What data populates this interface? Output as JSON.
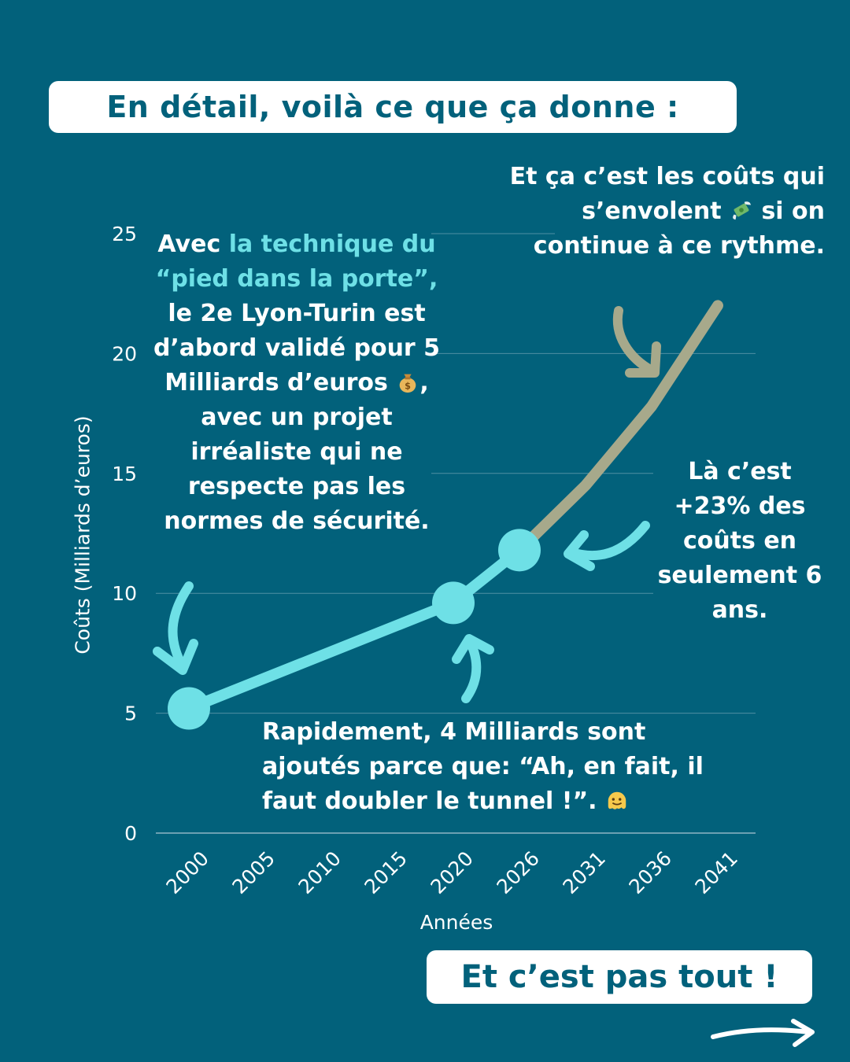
{
  "header": {
    "title": "En détail, voilà ce que ça donne :"
  },
  "chart_data": {
    "type": "line",
    "xlabel": "Années",
    "ylabel": "Coûts (Milliards d’euros)",
    "x_ticks": [
      "2000",
      "2005",
      "2010",
      "2015",
      "2020",
      "2026",
      "2031",
      "2036",
      "2041"
    ],
    "y_ticks": [
      "0",
      "5",
      "10",
      "15",
      "20",
      "25"
    ],
    "ylim": [
      0,
      25
    ],
    "grid": "horizontal",
    "series": [
      {
        "kind": "actual",
        "color": "#6ee0e6",
        "points": [
          {
            "x": 2000,
            "y": 5.2
          },
          {
            "x": 2020,
            "y": 9.6
          },
          {
            "x": 2026,
            "y": 11.8
          }
        ]
      },
      {
        "kind": "projection",
        "color": "#a7a98b",
        "points": [
          {
            "x": 2026,
            "y": 11.8
          },
          {
            "x": 2031,
            "y": 14.5
          },
          {
            "x": 2036,
            "y": 17.8
          },
          {
            "x": 2041,
            "y": 22.0
          }
        ]
      }
    ]
  },
  "annotations": {
    "left": {
      "part1": "Avec ",
      "highlight": "la technique du “pied dans la porte”,",
      "part2": " le 2e Lyon-Turin est d’abord validé pour 5 Milliards d’euros",
      "part3": ", avec un projet irréaliste qui ne respecte pas les normes de sécurité."
    },
    "top": "Et ça c’est les coûts qui s’envolent",
    "top_end": " si on continue à ce rythme.",
    "right": "Là c’est +23% des coûts en seulement 6 ans.",
    "bottom": "Rapidement, 4 Milliards sont ajoutés parce que: “Ah, en fait, il faut doubler le tunnel !”."
  },
  "icons": {
    "money_bag": "money-bag-icon",
    "money_wings": "money-with-wings-icon",
    "melting_face": "melting-face-icon",
    "next": "right-arrow-icon"
  },
  "colors": {
    "background": "#02617b",
    "actual_line": "#6ee0e6",
    "projection_line": "#a7a98b",
    "arrow_grey": "#a7a98b"
  },
  "footer": {
    "cta": "Et c’est pas tout !"
  }
}
